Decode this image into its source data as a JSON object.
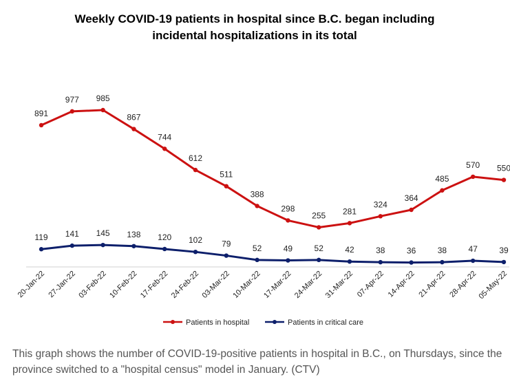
{
  "chart_data": {
    "type": "line",
    "title": [
      "Weekly COVID-19 patients in hospital since B.C. began including",
      "incidental hospitalizations in its total"
    ],
    "categories": [
      "20-Jan-22",
      "27-Jan-22",
      "03-Feb-22",
      "10-Feb-22",
      "17-Feb-22",
      "24-Feb-22",
      "03-Mar-22",
      "10-Mar-22",
      "17-Mar-22",
      "24-Mar-22",
      "31-Mar-22",
      "07-Apr-22",
      "14-Apr-22",
      "21-Apr-22",
      "28-Apr-22",
      "05-May-22"
    ],
    "series": [
      {
        "name": "Patients in hospital",
        "color": "#cc1111",
        "values": [
          891,
          977,
          985,
          867,
          744,
          612,
          511,
          388,
          298,
          255,
          281,
          324,
          364,
          485,
          570,
          550
        ]
      },
      {
        "name": "Patients in critical care",
        "color": "#0d1f6b",
        "values": [
          119,
          141,
          145,
          138,
          120,
          102,
          79,
          52,
          49,
          52,
          42,
          38,
          36,
          38,
          47,
          39
        ]
      }
    ],
    "ylim": [
      0,
      1000
    ],
    "xlabel": "",
    "ylabel": "",
    "grid": false,
    "legend": "bottom"
  },
  "caption": "This graph shows the number of COVID-19-positive patients in hospital in B.C., on Thursdays, since the province switched to a \"hospital census\" model in January. (CTV)"
}
